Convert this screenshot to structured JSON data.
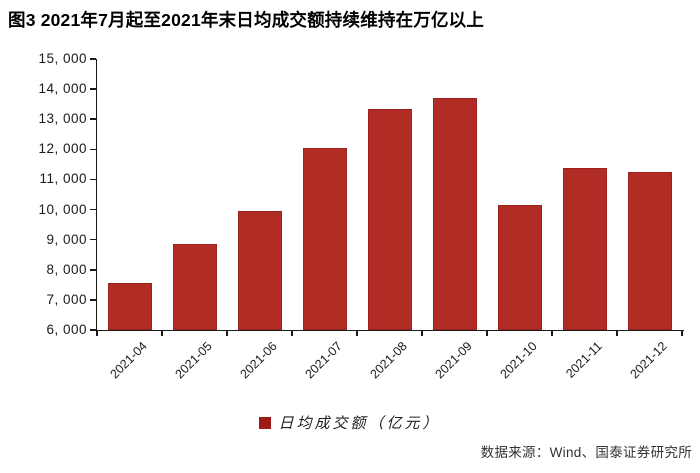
{
  "title": "图3  2021年7月起至2021年末日均成交额持续维持在万亿以上",
  "legend": {
    "label": "日均成交额（亿元）",
    "marker_color": "#9c1b15"
  },
  "source": "数据来源：Wind、国泰证券研究所",
  "colors": {
    "bar": "#b02c25",
    "axis": "#1a1a1a",
    "title_text": "#000000",
    "tick_text": "#1a1a1a",
    "source_text": "#333333"
  },
  "chart_data": {
    "type": "bar",
    "title": "图3  2021年7月起至2021年末日均成交额持续维持在万亿以上",
    "series_name": "日均成交额（亿元）",
    "categories": [
      "2021-04",
      "2021-05",
      "2021-06",
      "2021-07",
      "2021-08",
      "2021-09",
      "2021-10",
      "2021-11",
      "2021-12"
    ],
    "values": [
      7550,
      8850,
      9950,
      12050,
      13330,
      13710,
      10150,
      11370,
      11240
    ],
    "xlabel": "",
    "ylabel": "",
    "ylim": [
      6000,
      15000
    ],
    "ytick_interval": 1000,
    "ytick_labels": [
      "6, 000",
      "7, 000",
      "8, 000",
      "9, 000",
      "10, 000",
      "11, 000",
      "12, 000",
      "13, 000",
      "14, 000",
      "15, 000"
    ],
    "grid": false,
    "legend_position": "bottom",
    "bar_color": "#b02c25"
  }
}
